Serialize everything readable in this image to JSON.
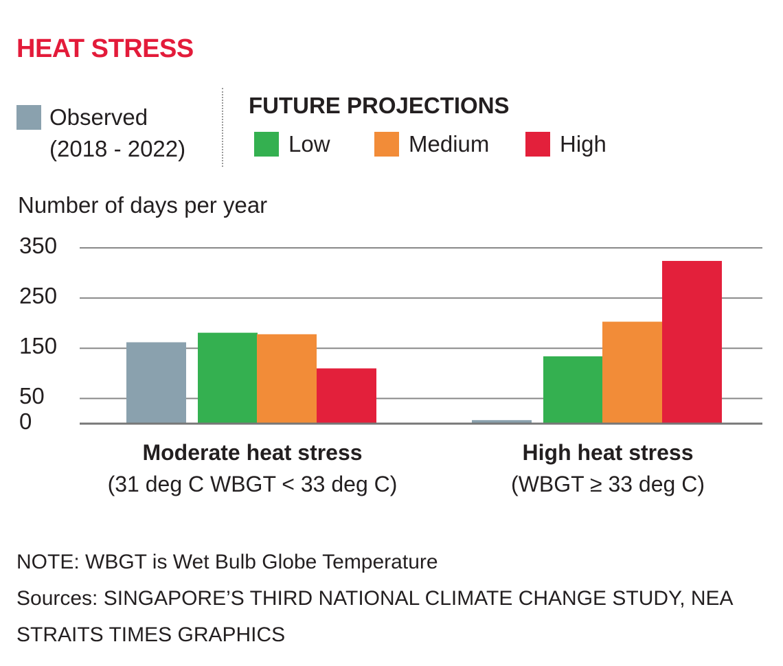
{
  "title": "HEAT STRESS",
  "legend": {
    "observed": {
      "label": "Observed",
      "sub": "(2018 - 2022)",
      "color": "#8aa1ae"
    },
    "projections_title": "FUTURE PROJECTIONS",
    "low": {
      "label": "Low",
      "color": "#34b050"
    },
    "medium": {
      "label": "Medium",
      "color": "#f28c38"
    },
    "high": {
      "label": "High",
      "color": "#e3203b"
    }
  },
  "chart_data": {
    "type": "bar",
    "ylabel": "Number of days per year",
    "yticks": [
      0,
      50,
      150,
      250,
      350
    ],
    "ylim": [
      0,
      350
    ],
    "grid": true,
    "categories": [
      {
        "title": "Moderate heat stress",
        "sub": "(31 deg C WBGT < 33 deg C)"
      },
      {
        "title": "High heat stress",
        "sub": "(WBGT ≥ 33 deg C)"
      }
    ],
    "series": [
      {
        "name": "Observed (2018 - 2022)",
        "color": "#8aa1ae",
        "values": [
          162,
          7
        ]
      },
      {
        "name": "Low",
        "color": "#34b050",
        "values": [
          181,
          134
        ]
      },
      {
        "name": "Medium",
        "color": "#f28c38",
        "values": [
          178,
          203
        ]
      },
      {
        "name": "High",
        "color": "#e3203b",
        "values": [
          110,
          324
        ]
      }
    ]
  },
  "notes": {
    "note": "NOTE: WBGT is Wet Bulb Globe Temperature",
    "sources": "Sources: SINGAPORE’S THIRD NATIONAL CLIMATE CHANGE STUDY, NEA",
    "credit": "STRAITS TIMES GRAPHICS"
  }
}
